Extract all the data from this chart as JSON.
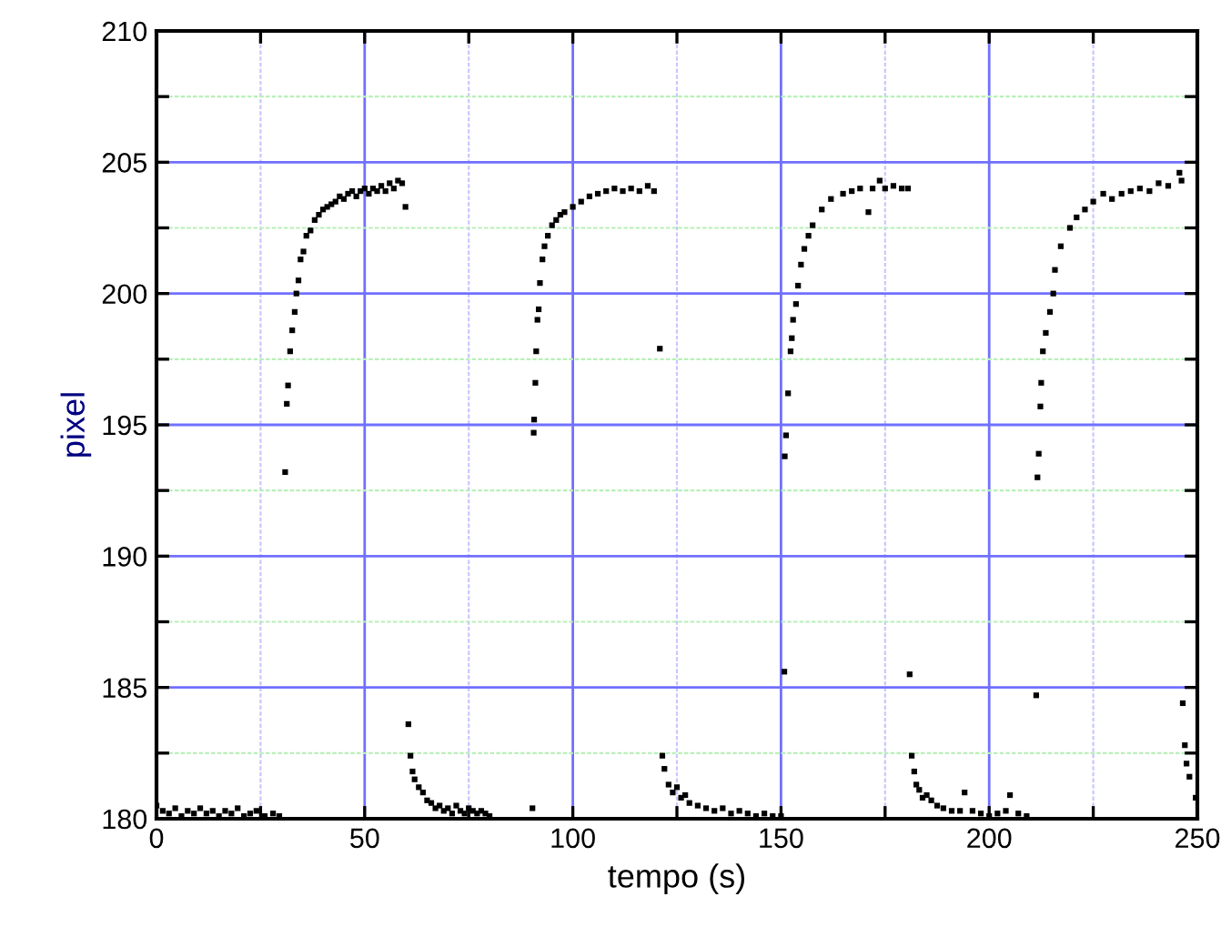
{
  "chart_data": {
    "type": "scatter",
    "xlabel": "tempo (s)",
    "ylabel": "pixel",
    "marker": "square",
    "grid": true,
    "xlim": [
      0,
      250
    ],
    "ylim": [
      180,
      210
    ],
    "xticks": [
      0,
      {
        "value": 25,
        "label": null
      },
      50,
      {
        "value": 75,
        "label": null
      },
      100,
      {
        "value": 125,
        "label": null
      },
      150,
      {
        "value": 175,
        "label": null
      },
      200,
      {
        "value": 225,
        "label": null
      },
      250
    ],
    "yticks": [
      180,
      {
        "value": 182.5,
        "label": null
      },
      185,
      {
        "value": 187.5,
        "label": null
      },
      190,
      {
        "value": 192.5,
        "label": null
      },
      195,
      {
        "value": 197.5,
        "label": null
      },
      200,
      {
        "value": 202.5,
        "label": null
      },
      205,
      {
        "value": 207.5,
        "label": null
      },
      210
    ],
    "series": [
      {
        "color": "#000000",
        "x": [
          0,
          1.5,
          3,
          4.5,
          6,
          7.5,
          9,
          10.5,
          12,
          13.5,
          15,
          16.5,
          18,
          19.5,
          21,
          22.5,
          24,
          26,
          28,
          29.5,
          30.9,
          31.3,
          31.6,
          32.1,
          32.6,
          33.2,
          33.6,
          34.1,
          34.6,
          35.3,
          36,
          37,
          38,
          39,
          40,
          41,
          42,
          43,
          44,
          45,
          46,
          47,
          48,
          49,
          50,
          51,
          52,
          53,
          54,
          55,
          56,
          57,
          58,
          59,
          59.8,
          60.5,
          61,
          61.5,
          62,
          63,
          64,
          65,
          66,
          67,
          68,
          69,
          70,
          71,
          72,
          73,
          74,
          75,
          76,
          77,
          78,
          79,
          80,
          90.3,
          90.6,
          90.7,
          91,
          91.2,
          91.5,
          91.8,
          92.1,
          92.7,
          93.2,
          94,
          95,
          96,
          97,
          98,
          100,
          102,
          104,
          106,
          108,
          110,
          112,
          114,
          116,
          118,
          119.5,
          120.9,
          121.5,
          122,
          123,
          124,
          125,
          126,
          127,
          128,
          130,
          132,
          134,
          136,
          138,
          140,
          142,
          144,
          146,
          148,
          150,
          150.8,
          150.9,
          151.2,
          151.7,
          152.3,
          152.6,
          152.9,
          153.6,
          154.1,
          154.8,
          155.6,
          156.6,
          157.6,
          159.8,
          162,
          164.9,
          167,
          169,
          171,
          172,
          173.7,
          175,
          177,
          179,
          180.5,
          180.9,
          181.4,
          182,
          182.5,
          183.2,
          184,
          185,
          186.1,
          187.5,
          189,
          191,
          193,
          194.1,
          196,
          198,
          200,
          202,
          204,
          205,
          207,
          209,
          211.3,
          211.6,
          211.9,
          212.3,
          212.5,
          212.9,
          213.6,
          214.6,
          215.4,
          215.8,
          217.2,
          219.4,
          221,
          223,
          225,
          227.4,
          229.5,
          231.8,
          234,
          236.2,
          238.5,
          240.7,
          243,
          245.7,
          246.2,
          246.5,
          247,
          247.4,
          248.1,
          249.6
        ],
        "values": [
          180.5,
          180.3,
          180.2,
          180.4,
          180.1,
          180.3,
          180.2,
          180.4,
          180.2,
          180.3,
          180.1,
          180.3,
          180.2,
          180.4,
          180.1,
          180.2,
          180.3,
          180.1,
          180.2,
          180.1,
          193.2,
          195.8,
          196.5,
          197.8,
          198.6,
          199.3,
          200,
          200.5,
          201.3,
          201.6,
          202.2,
          202.4,
          202.8,
          203,
          203.2,
          203.3,
          203.4,
          203.5,
          203.7,
          203.6,
          203.8,
          203.9,
          203.7,
          203.9,
          204,
          203.8,
          204,
          203.9,
          204.1,
          203.9,
          204.2,
          204,
          204.3,
          204.2,
          203.3,
          183.6,
          182.4,
          181.8,
          181.5,
          181.2,
          181,
          180.7,
          180.6,
          180.4,
          180.5,
          180.3,
          180.4,
          180.2,
          180.5,
          180.3,
          180.2,
          180.4,
          180.3,
          180.2,
          180.3,
          180.2,
          180.1,
          180.4,
          194.7,
          195.2,
          196.6,
          197.8,
          199,
          199.4,
          200.4,
          201.3,
          201.8,
          202.2,
          202.6,
          202.8,
          203,
          203.1,
          203.3,
          203.5,
          203.7,
          203.8,
          203.9,
          204,
          203.9,
          204,
          203.9,
          204.1,
          203.9,
          197.9,
          182.4,
          181.9,
          181.3,
          181,
          181.2,
          180.8,
          180.9,
          180.6,
          180.5,
          180.4,
          180.3,
          180.4,
          180.2,
          180.3,
          180.2,
          180.1,
          180.2,
          180.1,
          180.1,
          185.6,
          193.8,
          194.6,
          196.2,
          197.8,
          198.3,
          199,
          199.6,
          200.3,
          201.1,
          201.7,
          202.2,
          202.6,
          203.2,
          203.6,
          203.8,
          203.9,
          204,
          203.1,
          204,
          204.3,
          204,
          204.1,
          204,
          204,
          185.5,
          182.4,
          181.8,
          181.3,
          181.1,
          180.8,
          180.9,
          180.7,
          180.5,
          180.4,
          180.3,
          180.3,
          181,
          180.3,
          180.2,
          180.1,
          180.2,
          180.3,
          180.9,
          180.2,
          180.1,
          184.7,
          193,
          193.9,
          195.7,
          196.6,
          197.8,
          198.5,
          199.3,
          200,
          200.9,
          201.8,
          202.5,
          202.9,
          203.2,
          203.5,
          203.8,
          203.6,
          203.8,
          203.9,
          204,
          203.9,
          204.2,
          204.1,
          204.6,
          204.3,
          184.4,
          182.8,
          182.1,
          181.6,
          180.8
        ]
      }
    ]
  }
}
